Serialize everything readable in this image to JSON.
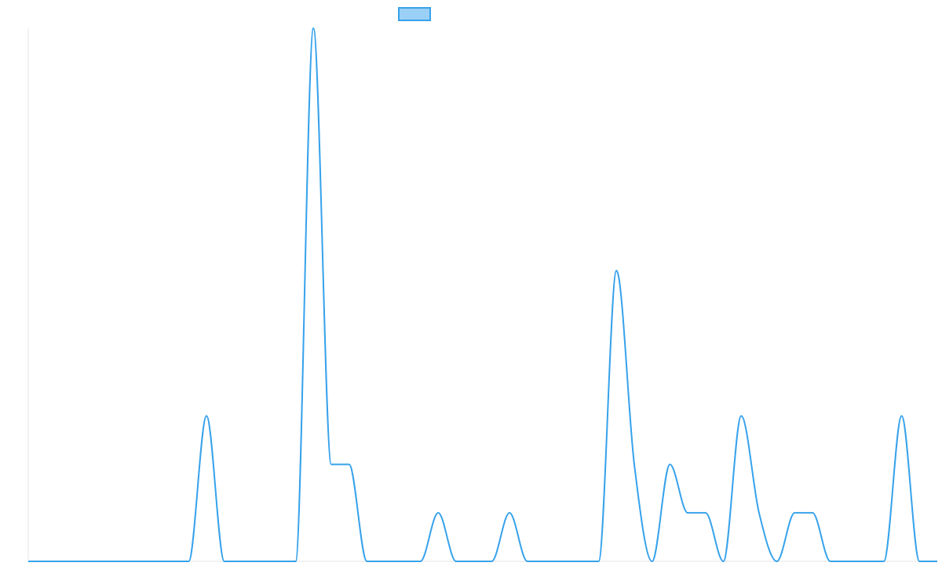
{
  "chart_data": {
    "type": "line",
    "title": "",
    "xlabel": "",
    "ylabel": "",
    "grid": false,
    "legend": "top-center",
    "colors": {
      "line": "#36a2eb",
      "legend_fill": "#9ad0f5",
      "axis": "#e6e6e6"
    },
    "x": [
      0,
      1,
      2,
      3,
      4,
      5,
      6,
      7,
      8,
      9,
      10,
      11,
      12,
      13,
      14,
      15,
      16,
      17,
      18,
      19,
      20,
      21,
      22,
      23,
      24,
      25,
      26,
      27,
      28,
      29,
      30,
      31,
      32,
      33,
      34,
      35,
      36,
      37,
      38,
      39,
      40,
      41,
      42,
      43,
      44,
      45,
      46,
      47,
      48,
      49,
      50,
      51
    ],
    "ylim": [
      0,
      11
    ],
    "series": [
      {
        "values": [
          0,
          0,
          0,
          0,
          0,
          0,
          0,
          0,
          0,
          0,
          3,
          0,
          0,
          0,
          0,
          0,
          11,
          2,
          2,
          0,
          0,
          0,
          0,
          1,
          0,
          0,
          0,
          1,
          0,
          0,
          0,
          0,
          0,
          6,
          2,
          0,
          2,
          1,
          1,
          0,
          3,
          1,
          0,
          1,
          1,
          0,
          0,
          0,
          0,
          3,
          0,
          0
        ]
      }
    ]
  }
}
